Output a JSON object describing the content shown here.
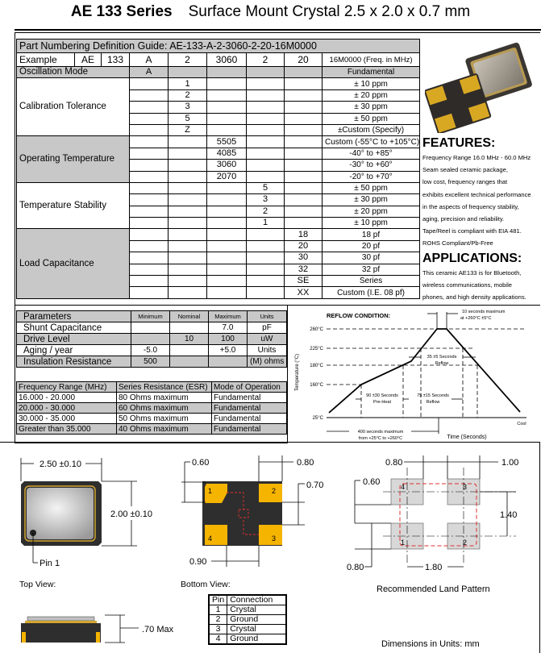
{
  "header": {
    "series": "AE 133 Series",
    "subtitle": "Surface Mount Crystal  2.5 x 2.0 x 0.7 mm"
  },
  "part_numbering": {
    "title": "Part Numbering Definition Guide:  AE-133-A-2-3060-2-20-16M0000",
    "example": [
      "Example",
      "AE",
      "133",
      "A",
      "2",
      "3060",
      "2",
      "20",
      "16M0000 (Freq. in MHz)"
    ],
    "sections": [
      {
        "label": "Oscillation Mode",
        "shaded": true,
        "code_column": 0,
        "rows": [
          {
            "code": "A",
            "desc": "Fundamental"
          }
        ]
      },
      {
        "label": "Calibration Tolerance",
        "shaded": false,
        "code_column": 1,
        "rows": [
          {
            "code": "1",
            "desc": "± 10 ppm"
          },
          {
            "code": "2",
            "desc": "± 20 ppm"
          },
          {
            "code": "3",
            "desc": "± 30 ppm"
          },
          {
            "code": "5",
            "desc": "± 50 ppm"
          },
          {
            "code": "Z",
            "desc": "±Custom (Specify)"
          }
        ]
      },
      {
        "label": "Operating Temperature",
        "shaded": true,
        "code_column": 2,
        "rows": [
          {
            "code": "5505",
            "desc": "Custom (-55°C to +105°C)"
          },
          {
            "code": "4085",
            "desc": "-40° to +85°"
          },
          {
            "code": "3060",
            "desc": "-30° to +60°"
          },
          {
            "code": "2070",
            "desc": "-20° to +70°"
          }
        ]
      },
      {
        "label": "Temperature Stability",
        "shaded": false,
        "code_column": 3,
        "rows": [
          {
            "code": "5",
            "desc": "± 50 ppm"
          },
          {
            "code": "3",
            "desc": "± 30 ppm"
          },
          {
            "code": "2",
            "desc": "± 20 ppm"
          },
          {
            "code": "1",
            "desc": "± 10 ppm"
          }
        ]
      },
      {
        "label": "Load Capacitance",
        "shaded": true,
        "code_column": 4,
        "rows": [
          {
            "code": "18",
            "desc": "18 pf"
          },
          {
            "code": "20",
            "desc": "20 pf"
          },
          {
            "code": "30",
            "desc": "30 pf"
          },
          {
            "code": "32",
            "desc": "32 pf"
          },
          {
            "code": "SE",
            "desc": "Series"
          },
          {
            "code": "XX",
            "desc": "Custom (I.E. 08 pf)"
          }
        ]
      }
    ]
  },
  "features": {
    "heading": "FEATURES:",
    "lines": [
      "Frequency Range 16.0 MHz - 60.0 MHz",
      "Seam sealed ceramic package,",
      "low cost,  frequency ranges that",
      "exhibits excellent technical performance",
      "in the aspects of frequency stability,",
      "aging, precision and reliability.",
      "Tape/Reel is compliant with EIA 481.",
      "ROHS Compliant/Pb-Free"
    ]
  },
  "applications": {
    "heading": "APPLICATIONS:",
    "lines": [
      "This ceramic AE133 is for Bluetooth,",
      "wireless communications, mobile",
      "phones, and high density applications."
    ]
  },
  "parameters": {
    "headers": [
      "Parameters",
      "Minimum",
      "Nominal",
      "Maximum",
      "Units"
    ],
    "rows": [
      [
        "Shunt Capacitance",
        "",
        "",
        "7.0",
        "pF"
      ],
      [
        "Drive Level",
        "",
        "10",
        "100",
        "uW"
      ],
      [
        "Aging / year",
        "-5.0",
        "",
        "+5.0",
        "Units"
      ],
      [
        "Insulation Resistance",
        "500",
        "",
        "",
        "(M) ohms"
      ]
    ]
  },
  "esr": {
    "headers": [
      "Frequency Range (MHz)",
      "Series Resistance (ESR)",
      "Mode of Operation"
    ],
    "rows": [
      [
        "16.000 - 20.000",
        "80 Ohms maximum",
        "Fundamental"
      ],
      [
        "20.000 - 30.000",
        "60 Ohms maximum",
        "Fundamental"
      ],
      [
        "30.000 - 35.000",
        "50 Ohms maximum",
        "Fundamental"
      ],
      [
        "Greater than 35.000",
        "40 Ohms maximum",
        "Fundamental"
      ]
    ]
  },
  "reflow": {
    "title": "REFLOW CONDITION:",
    "ylabel": "Temperature (°C)",
    "xlabel": "Time (Seconds)",
    "ticks": [
      "260°C",
      "225°C",
      "180°C",
      "160°C",
      "25°C"
    ],
    "peak_note": [
      "10 seconds maximum",
      "at +260°C ±5°C"
    ],
    "reflow35": [
      "35 ±5 Seconds",
      "Reflow"
    ],
    "preheat": [
      "90 ±30 Seconds",
      "Pre-Heat"
    ],
    "reflow75": [
      "75 ±15 Seconds",
      "Reflow"
    ],
    "total": [
      "400 seconds maximum",
      "from  +25°C to +260°C"
    ],
    "cool": "Cool"
  },
  "drawings": {
    "top_width": "2.50 ±0.10",
    "top_height": "2.00 ±0.10",
    "pin1": "Pin 1",
    "top_view": "Top View:",
    "side_height": ".70 Max",
    "bottom_view": "Bottom View:",
    "bottom_dims": {
      "pad_w": "0.60",
      "pad_gap": "0.80",
      "pad_h": "0.70",
      "pad_span": "0.90"
    },
    "pad_labels": [
      "1",
      "2",
      "3",
      "4"
    ],
    "land_dims": {
      "a": "0.80",
      "b": "1.00",
      "c": "0.60",
      "d": "1.40",
      "e": "0.80",
      "f": "1.80"
    },
    "land_title": "Recommended Land Pattern",
    "units_note": "Dimensions in Units: mm"
  },
  "pin_table": {
    "headers": [
      "Pin",
      "Connection"
    ],
    "rows": [
      [
        "1",
        "Crystal"
      ],
      [
        "2",
        "Ground"
      ],
      [
        "3",
        "Crystal"
      ],
      [
        "4",
        "Ground"
      ]
    ]
  },
  "colors": {
    "shade": "#c8c8c8",
    "pad_gold": "#f5b400",
    "body": "#2b2b2b",
    "land_dash": "#e03030"
  }
}
